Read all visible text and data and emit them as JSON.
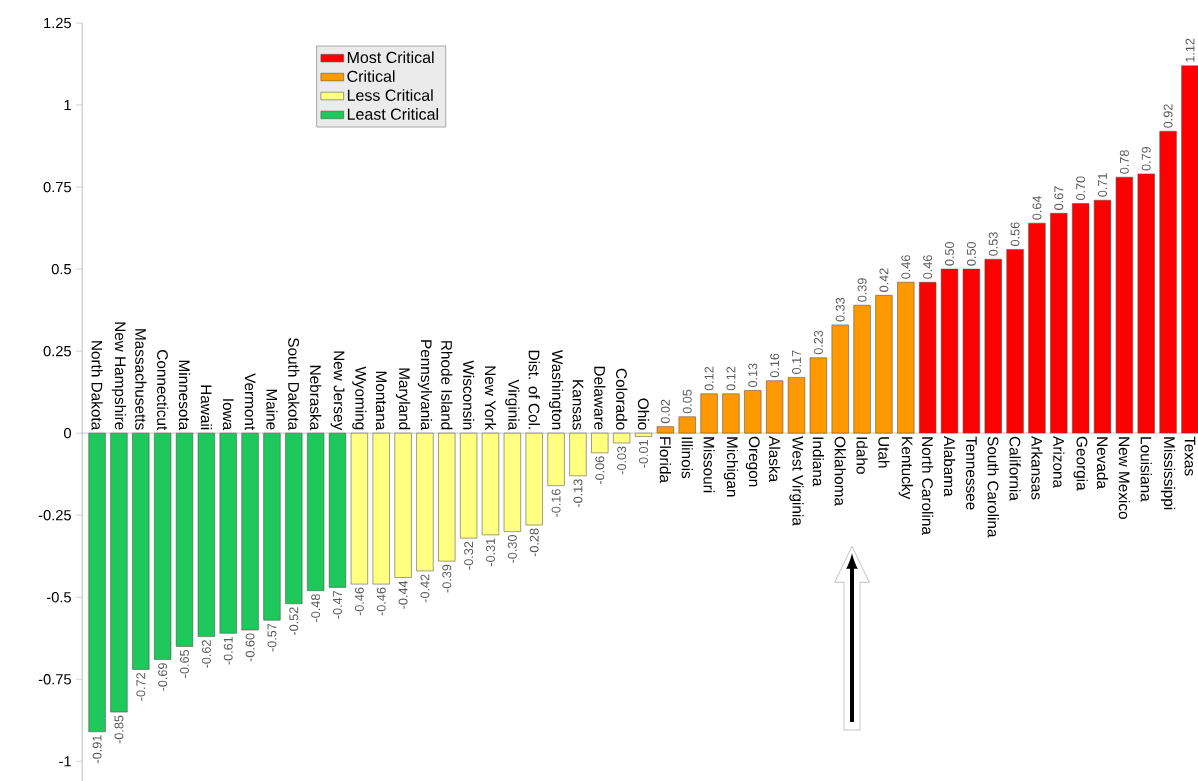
{
  "chart_data": {
    "type": "bar",
    "categories": [
      "North Dakota",
      "New Hampshire",
      "Massachusetts",
      "Connecticut",
      "Minnesota",
      "Hawaii",
      "Iowa",
      "Vermont",
      "Maine",
      "South Dakota",
      "Nebraska",
      "New Jersey",
      "Wyoming",
      "Montana",
      "Maryland",
      "Pennsylvania",
      "Rhode Island",
      "Wisconsin",
      "New York",
      "Virginia",
      "Dist. of Col.",
      "Washington",
      "Kansas",
      "Delaware",
      "Colorado",
      "Ohio",
      "Florida",
      "Illinois",
      "Missouri",
      "Michigan",
      "Oregon",
      "Alaska",
      "West Virginia",
      "Indiana",
      "Oklahoma",
      "Idaho",
      "Utah",
      "Kentucky",
      "North Carolina",
      "Alabama",
      "Tennessee",
      "South Carolina",
      "California",
      "Arkansas",
      "Arizona",
      "Georgia",
      "Nevada",
      "New Mexico",
      "Louisiana",
      "Mississippi",
      "Texas"
    ],
    "series": [
      {
        "name": "Most Critical",
        "color": "#ff0000",
        "values": [
          null,
          null,
          null,
          null,
          null,
          null,
          null,
          null,
          null,
          null,
          null,
          null,
          null,
          null,
          null,
          null,
          null,
          null,
          null,
          null,
          null,
          null,
          null,
          null,
          null,
          null,
          null,
          null,
          null,
          null,
          null,
          null,
          null,
          null,
          null,
          null,
          null,
          null,
          0.46,
          0.5,
          0.5,
          0.53,
          0.56,
          0.64,
          0.67,
          0.7,
          0.71,
          0.78,
          0.79,
          0.92,
          1.12
        ],
        "value_labels": [
          null,
          null,
          null,
          null,
          null,
          null,
          null,
          null,
          null,
          null,
          null,
          null,
          null,
          null,
          null,
          null,
          null,
          null,
          null,
          null,
          null,
          null,
          null,
          null,
          null,
          null,
          null,
          null,
          null,
          null,
          null,
          null,
          null,
          null,
          null,
          null,
          null,
          null,
          "0.46",
          "0.50",
          "0.50",
          "0.53",
          "0.56",
          "0.64",
          "0.67",
          "0.70",
          "0.71",
          "0.78",
          "0.79",
          "0.92",
          "1.12"
        ]
      },
      {
        "name": "Critical",
        "color": "#ff9900",
        "values": [
          null,
          null,
          null,
          null,
          null,
          null,
          null,
          null,
          null,
          null,
          null,
          null,
          null,
          null,
          null,
          null,
          null,
          null,
          null,
          null,
          null,
          null,
          null,
          null,
          null,
          null,
          0.02,
          0.05,
          0.12,
          0.12,
          0.13,
          0.16,
          0.17,
          0.23,
          0.33,
          0.39,
          0.42,
          0.46,
          null,
          null,
          null,
          null,
          null,
          null,
          null,
          null,
          null,
          null,
          null,
          null,
          null
        ],
        "value_labels": [
          null,
          null,
          null,
          null,
          null,
          null,
          null,
          null,
          null,
          null,
          null,
          null,
          null,
          null,
          null,
          null,
          null,
          null,
          null,
          null,
          null,
          null,
          null,
          null,
          null,
          null,
          "0.02",
          "0.05",
          "0.12",
          "0.12",
          "0.13",
          "0.16",
          "0.17",
          "0.23",
          "0.33",
          "0.39",
          "0.42",
          "0.46",
          null,
          null,
          null,
          null,
          null,
          null,
          null,
          null,
          null,
          null,
          null,
          null,
          null
        ]
      },
      {
        "name": "Less Critical",
        "color": "#ffff80",
        "values": [
          null,
          null,
          null,
          null,
          null,
          null,
          null,
          null,
          null,
          null,
          null,
          null,
          -0.46,
          -0.46,
          -0.44,
          -0.42,
          -0.39,
          -0.32,
          -0.31,
          -0.3,
          -0.28,
          -0.16,
          -0.13,
          -0.06,
          -0.03,
          -0.01,
          null,
          null,
          null,
          null,
          null,
          null,
          null,
          null,
          null,
          null,
          null,
          null,
          null,
          null,
          null,
          null,
          null,
          null,
          null,
          null,
          null,
          null,
          null,
          null,
          null
        ],
        "value_labels": [
          null,
          null,
          null,
          null,
          null,
          null,
          null,
          null,
          null,
          null,
          null,
          null,
          "-0.46",
          "-0.46",
          "-0.44",
          "-0.42",
          "-0.39",
          "-0.32",
          "-0.31",
          "-0.30",
          "-0.28",
          "-0.16",
          "-0.13",
          "-0.06",
          "-0.03",
          "-0.01",
          null,
          null,
          null,
          null,
          null,
          null,
          null,
          null,
          null,
          null,
          null,
          null,
          null,
          null,
          null,
          null,
          null,
          null,
          null,
          null,
          null,
          null,
          null,
          null,
          null
        ]
      },
      {
        "name": "Least Critical",
        "color": "#1ec85a",
        "values": [
          -0.91,
          -0.85,
          -0.72,
          -0.69,
          -0.65,
          -0.62,
          -0.61,
          -0.6,
          -0.57,
          -0.52,
          -0.48,
          -0.47,
          null,
          null,
          null,
          null,
          null,
          null,
          null,
          null,
          null,
          null,
          null,
          null,
          null,
          null,
          null,
          null,
          null,
          null,
          null,
          null,
          null,
          null,
          null,
          null,
          null,
          null,
          null,
          null,
          null,
          null,
          null,
          null,
          null,
          null,
          null,
          null,
          null,
          null,
          null
        ],
        "value_labels": [
          "-0.91",
          "-0.85",
          "-0.72",
          "-0.69",
          "-0.65",
          "-0.62",
          "-0.61",
          "-0.60",
          "-0.57",
          "-0.52",
          "-0.48",
          "-0.47",
          null,
          null,
          null,
          null,
          null,
          null,
          null,
          null,
          null,
          null,
          null,
          null,
          null,
          null,
          null,
          null,
          null,
          null,
          null,
          null,
          null,
          null,
          null,
          null,
          null,
          null,
          null,
          null,
          null,
          null,
          null,
          null,
          null,
          null,
          null,
          null,
          null,
          null,
          null
        ]
      }
    ],
    "ylim": [
      -1.06,
      1.25
    ],
    "yticks": [
      -1,
      -0.75,
      -0.5,
      -0.25,
      0,
      0.25,
      0.5,
      0.75,
      1,
      1.25
    ],
    "legend": "top left"
  }
}
